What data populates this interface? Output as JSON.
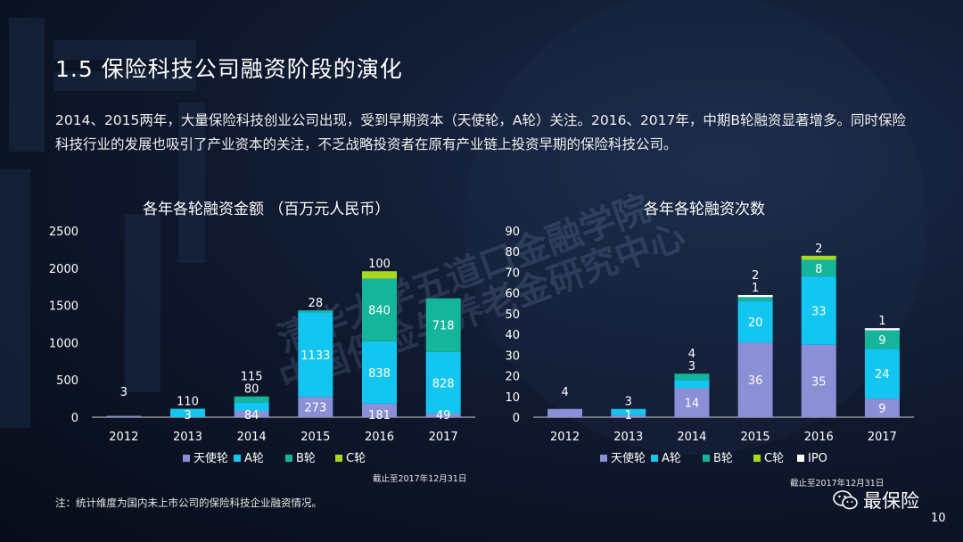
{
  "slide": {
    "title": "1.5 保险科技公司融资阶段的演化",
    "description": "2014、2015两年，大量保险科技创业公司出现，受到早期资本（天使轮，A轮）关注。2016、2017年，中期B轮融资显著增多。同时保险科技行业的发展也吸引了产业资本的关注，不乏战略投资者在原有产业链上投资早期的保险科技公司。",
    "note": "注：统计维度为国内未上市公司的保险科技企业融资情况。",
    "brand": "最保险",
    "page_number": "10",
    "watermark_line1": "清华大学五道口金融学院",
    "watermark_line2": "中国保险与养老金研究中心"
  },
  "colors": {
    "background": "#0b1426",
    "angel": "#8b8fd6",
    "a_round": "#13c6f2",
    "b_round": "#14b59a",
    "c_round": "#a8d820",
    "ipo": "#ffffff"
  },
  "chart_data": [
    {
      "type": "bar",
      "stacked": true,
      "title": "各年各轮融资金额 （百万元人民币）",
      "cutoff": "截止至2017年12月31日",
      "categories": [
        "2012",
        "2013",
        "2014",
        "2015",
        "2016",
        "2017"
      ],
      "ylim": [
        0,
        2500
      ],
      "yticks": [
        0,
        500,
        1000,
        1500,
        2000,
        2500
      ],
      "legend_position": "bottom",
      "series": [
        {
          "name": "天使轮",
          "color_key": "angel",
          "values": [
            3,
            3,
            84,
            273,
            181,
            49
          ]
        },
        {
          "name": "A轮",
          "color_key": "a_round",
          "values": [
            0,
            110,
            115,
            1133,
            838,
            828
          ]
        },
        {
          "name": "B轮",
          "color_key": "b_round",
          "values": [
            0,
            0,
            80,
            28,
            840,
            718
          ]
        },
        {
          "name": "C轮",
          "color_key": "c_round",
          "values": [
            0,
            0,
            0,
            0,
            100,
            0
          ]
        }
      ],
      "labels": [
        {
          "category": "2012",
          "text": "3"
        },
        {
          "category": "2013",
          "text": "3"
        },
        {
          "category": "2013",
          "text": "110"
        },
        {
          "category": "2014",
          "text": "84"
        },
        {
          "category": "2014",
          "text": "115"
        },
        {
          "category": "2014",
          "text": "80"
        },
        {
          "category": "2015",
          "text": "273"
        },
        {
          "category": "2015",
          "text": "1133"
        },
        {
          "category": "2015",
          "text": "28"
        },
        {
          "category": "2016",
          "text": "181"
        },
        {
          "category": "2016",
          "text": "838"
        },
        {
          "category": "2016",
          "text": "840"
        },
        {
          "category": "2016",
          "text": "100"
        },
        {
          "category": "2017",
          "text": "49"
        },
        {
          "category": "2017",
          "text": "828"
        },
        {
          "category": "2017",
          "text": "718"
        }
      ]
    },
    {
      "type": "bar",
      "stacked": true,
      "title": "各年各轮融资次数",
      "cutoff": "截止至2017年12月31日",
      "categories": [
        "2012",
        "2013",
        "2014",
        "2015",
        "2016",
        "2017"
      ],
      "ylim": [
        0,
        90
      ],
      "yticks": [
        0,
        10,
        20,
        30,
        40,
        50,
        60,
        70,
        80,
        90
      ],
      "legend_position": "bottom",
      "series": [
        {
          "name": "天使轮",
          "color_key": "angel",
          "values": [
            4,
            1,
            14,
            36,
            35,
            9
          ]
        },
        {
          "name": "A轮",
          "color_key": "a_round",
          "values": [
            0,
            3,
            4,
            20,
            33,
            24
          ]
        },
        {
          "name": "B轮",
          "color_key": "b_round",
          "values": [
            0,
            0,
            3,
            2,
            8,
            9
          ]
        },
        {
          "name": "C轮",
          "color_key": "c_round",
          "values": [
            0,
            0,
            0,
            0,
            2,
            0
          ]
        },
        {
          "name": "IPO",
          "color_key": "ipo",
          "values": [
            0,
            0,
            0,
            1,
            0,
            1
          ]
        }
      ],
      "labels": [
        {
          "category": "2012",
          "text": "4"
        },
        {
          "category": "2013",
          "text": "1"
        },
        {
          "category": "2013",
          "text": "3"
        },
        {
          "category": "2014",
          "text": "14"
        },
        {
          "category": "2014",
          "text": "4"
        },
        {
          "category": "2014",
          "text": "3"
        },
        {
          "category": "2015",
          "text": "36"
        },
        {
          "category": "2015",
          "text": "20"
        },
        {
          "category": "2015",
          "text": "2"
        },
        {
          "category": "2015",
          "text": "1"
        },
        {
          "category": "2016",
          "text": "35"
        },
        {
          "category": "2016",
          "text": "33"
        },
        {
          "category": "2016",
          "text": "8"
        },
        {
          "category": "2016",
          "text": "2"
        },
        {
          "category": "2017",
          "text": "9"
        },
        {
          "category": "2017",
          "text": "24"
        },
        {
          "category": "2017",
          "text": "9"
        },
        {
          "category": "2017",
          "text": "1"
        }
      ]
    }
  ]
}
